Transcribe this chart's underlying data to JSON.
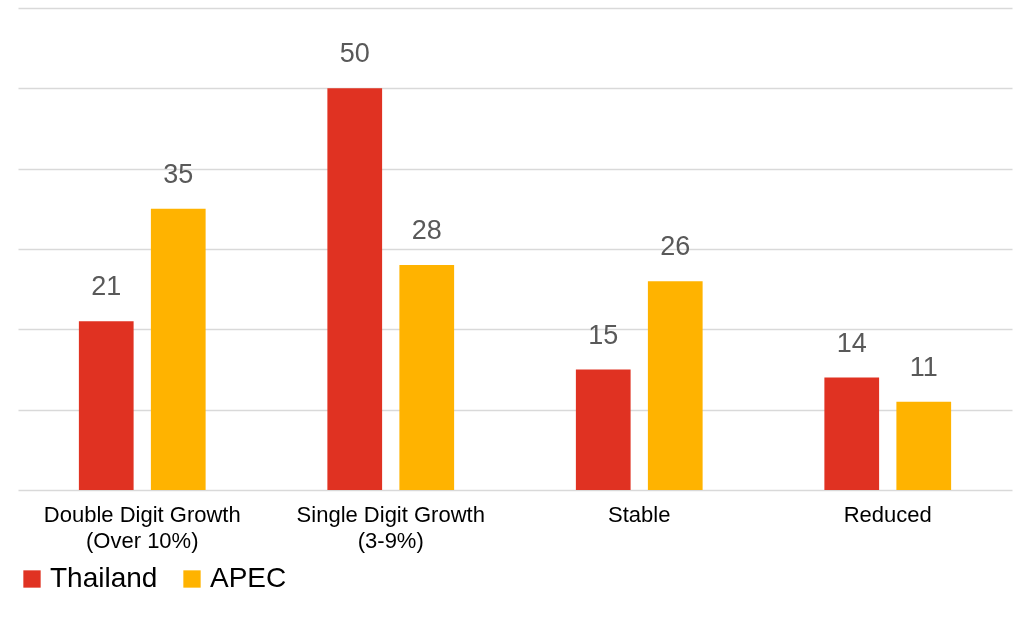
{
  "chart_data": {
    "type": "bar",
    "categories": [
      "Double Digit Growth\n(Over 10%)",
      "Single Digit Growth\n(3-9%)",
      "Stable",
      "Reduced"
    ],
    "series": [
      {
        "name": "Thailand",
        "color": "#e03222",
        "values": [
          21,
          50,
          15,
          14
        ]
      },
      {
        "name": "APEC",
        "color": "#ffb300",
        "values": [
          35,
          28,
          26,
          11
        ]
      }
    ],
    "ylim": [
      0,
      60
    ],
    "yticks": [
      0,
      10,
      20,
      30,
      40,
      50,
      60
    ],
    "grid": "y",
    "tick_labels": "x",
    "data_labels": true,
    "legend": "bottom"
  }
}
